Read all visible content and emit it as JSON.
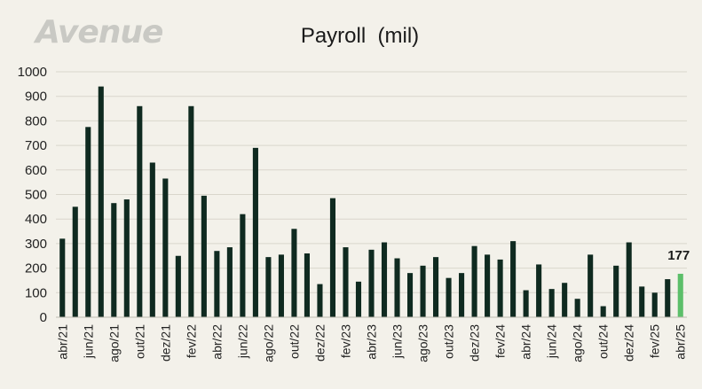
{
  "logo_text": "Avenue",
  "chart_data": {
    "type": "bar",
    "title": "Payroll  (mil)",
    "xlabel": "",
    "ylabel": "",
    "ylim": [
      0,
      1000
    ],
    "yticks": [
      0,
      100,
      200,
      300,
      400,
      500,
      600,
      700,
      800,
      900,
      1000
    ],
    "grid": true,
    "categories": [
      "abr/21",
      "mai/21",
      "jun/21",
      "jul/21",
      "ago/21",
      "set/21",
      "out/21",
      "nov/21",
      "dez/21",
      "jan/22",
      "fev/22",
      "mar/22",
      "abr/22",
      "mai/22",
      "jun/22",
      "jul/22",
      "ago/22",
      "set/22",
      "out/22",
      "nov/22",
      "dez/22",
      "jan/23",
      "fev/23",
      "mar/23",
      "abr/23",
      "mai/23",
      "jun/23",
      "jul/23",
      "ago/23",
      "set/23",
      "out/23",
      "nov/23",
      "dez/23",
      "jan/24",
      "fev/24",
      "mar/24",
      "abr/24",
      "mai/24",
      "jun/24",
      "jul/24",
      "ago/24",
      "set/24",
      "out/24",
      "nov/24",
      "dez/24",
      "jan/25",
      "fev/25",
      "mar/25",
      "abr/25"
    ],
    "shown_tick_labels": [
      "abr/21",
      "jun/21",
      "ago/21",
      "out/21",
      "dez/21",
      "fev/22",
      "abr/22",
      "jun/22",
      "ago/22",
      "out/22",
      "dez/22",
      "fev/23",
      "abr/23",
      "jun/23",
      "ago/23",
      "out/23",
      "dez/23",
      "fev/24",
      "abr/24",
      "jun/24",
      "ago/24",
      "out/24",
      "dez/24",
      "fev/25",
      "abr/25"
    ],
    "values": [
      320,
      450,
      775,
      940,
      465,
      480,
      860,
      630,
      565,
      250,
      860,
      495,
      270,
      285,
      420,
      690,
      245,
      255,
      360,
      260,
      135,
      485,
      285,
      145,
      275,
      305,
      240,
      180,
      210,
      245,
      160,
      180,
      290,
      255,
      235,
      310,
      110,
      215,
      115,
      140,
      75,
      255,
      45,
      210,
      305,
      125,
      100,
      155,
      177
    ],
    "highlight_index": 48,
    "data_labels": [
      {
        "category": "abr/25",
        "text": "177"
      }
    ],
    "bar_color": "#0f2a20",
    "highlight_color": "#5cbf6a"
  }
}
